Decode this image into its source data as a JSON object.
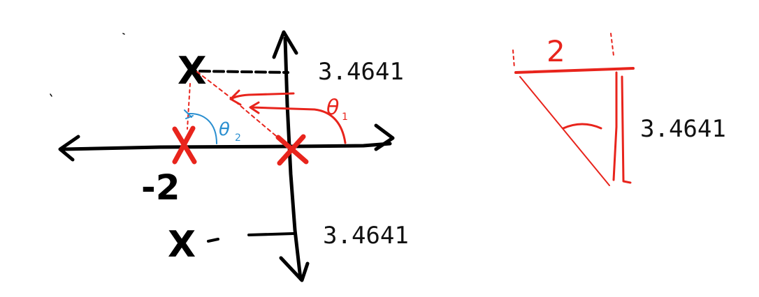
{
  "colors": {
    "ink": "#000000",
    "red": "#e8241c",
    "blue": "#2a8fd0",
    "background": "#ffffff"
  },
  "plot": {
    "upper_value": "3.4641",
    "lower_value": "3.4641",
    "neg_two": "-2",
    "pole_mark": "X",
    "theta1": "θ",
    "theta1_sub": "1",
    "theta2": "θ",
    "theta2_sub": "2"
  },
  "triangle": {
    "base_label": "2",
    "height_label": "3.4641"
  }
}
